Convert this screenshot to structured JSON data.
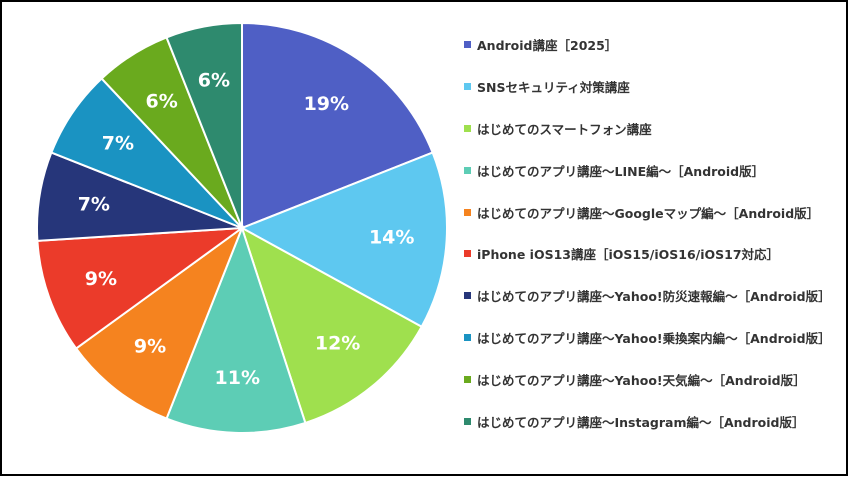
{
  "chart_data": {
    "type": "pie",
    "start_angle": "12 o'clock",
    "direction": "clockwise",
    "legend_position": "right",
    "categories": [
      "Android講座［2025］",
      "SNSセキュリティ対策講座",
      "はじめてのスマートフォン講座",
      "はじめてのアプリ講座～LINE編～［Android版］",
      "はじめてのアプリ講座～Googleマップ編～［Android版］",
      "iPhone iOS13講座［iOS15/iOS16/iOS17対応］",
      "はじめてのアプリ講座～Yahoo!防災速報編～［Android版］",
      "はじめてのアプリ講座～Yahoo!乗換案内編～［Android版］",
      "はじめてのアプリ講座～Yahoo!天気編～［Android版］",
      "はじめてのアプリ講座～Instagram編～［Android版］"
    ],
    "values": [
      19,
      14,
      12,
      11,
      9,
      9,
      7,
      7,
      6,
      6
    ],
    "labels": [
      "19%",
      "14%",
      "12%",
      "11%",
      "9%",
      "9%",
      "7%",
      "7%",
      "6%",
      "6%"
    ],
    "colors": [
      "#4f5fc5",
      "#5ec8f0",
      "#9fe04e",
      "#5dcdb5",
      "#f5831f",
      "#eb3b2a",
      "#26367a",
      "#1a93c2",
      "#6aaa1e",
      "#2e8a6e"
    ]
  }
}
